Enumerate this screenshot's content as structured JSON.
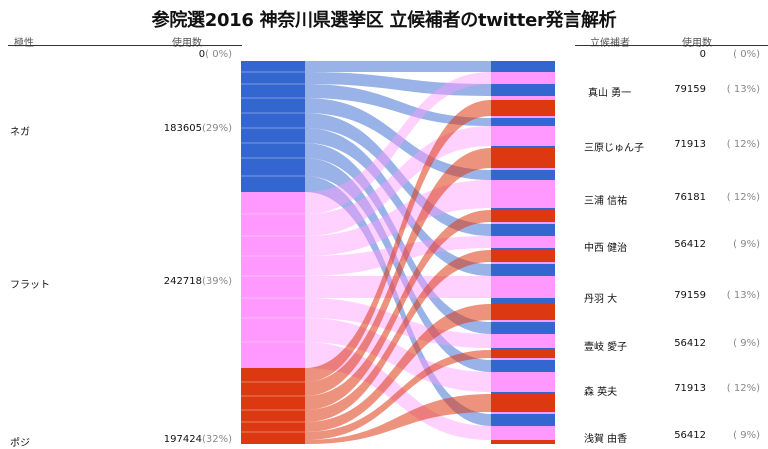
{
  "title": "参院選2016 神奈川県選挙区 立候補者のtwitter発言解析",
  "left_header": {
    "polarity": "極性",
    "usage": "使用数"
  },
  "right_header": {
    "candidate": "立候補者",
    "usage": "使用数"
  },
  "colors": {
    "nega": "#3466cf",
    "flat": "#ff99ff",
    "posi": "#dc3912"
  },
  "chart_data": {
    "type": "sankey",
    "title": "参院選2016 神奈川県選挙区 立候補者のtwitter発言解析",
    "sources": [
      {
        "name": "",
        "count": "0",
        "pct": "( 0%)",
        "value": 0,
        "color": "#8fa8dd"
      },
      {
        "name": "ネガ",
        "count": "183605",
        "pct": "(29%)",
        "value": 183605,
        "color": "#3466cf"
      },
      {
        "name": "フラット",
        "count": "242718",
        "pct": "(39%)",
        "value": 242718,
        "color": "#ff99ff"
      },
      {
        "name": "ポジ",
        "count": "197424",
        "pct": "(32%)",
        "value": 197424,
        "color": "#dc3912"
      }
    ],
    "targets": [
      {
        "name": "",
        "count": "0",
        "pct": "( 0%)",
        "value": 0
      },
      {
        "name": "真山 勇一",
        "count": "79159",
        "pct": "( 13%)",
        "value": 79159
      },
      {
        "name": "三原じゅん子",
        "count": "71913",
        "pct": "( 12%)",
        "value": 71913
      },
      {
        "name": "三浦 信祐",
        "count": "76181",
        "pct": "( 12%)",
        "value": 76181
      },
      {
        "name": "中西 健治",
        "count": "56412",
        "pct": "( 9%)",
        "value": 56412
      },
      {
        "name": "丹羽 大",
        "count": "79159",
        "pct": "( 13%)",
        "value": 79159
      },
      {
        "name": "壹岐 愛子",
        "count": "56412",
        "pct": "( 9%)",
        "value": 56412
      },
      {
        "name": "森 英夫",
        "count": "71913",
        "pct": "( 12%)",
        "value": 71913
      },
      {
        "name": "浅賀 由香",
        "count": "56412",
        "pct": "( 9%)",
        "value": 56412
      }
    ]
  }
}
